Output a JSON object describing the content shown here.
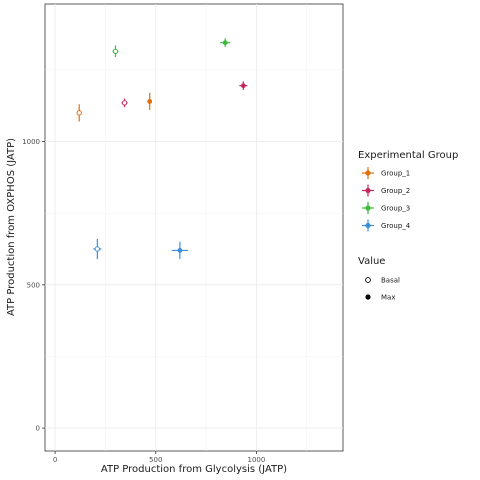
{
  "chart_data": {
    "type": "scatter",
    "xlabel": "ATP Production from Glycolysis (JATP)",
    "ylabel": "ATP Production from OXPHOS (JATP)",
    "xlim": [
      -50,
      1430
    ],
    "ylim": [
      -80,
      1480
    ],
    "x_ticks": [
      0,
      500,
      1000
    ],
    "y_ticks": [
      0,
      500,
      1000
    ],
    "grid": true,
    "legend_placement": "right",
    "color_legend": {
      "title": "Experimental Group",
      "entries": [
        {
          "label": "Group_1",
          "color": "#e0700f"
        },
        {
          "label": "Group_2",
          "color": "#c22a5e"
        },
        {
          "label": "Group_3",
          "color": "#3db83d"
        },
        {
          "label": "Group_4",
          "color": "#3b8fd6"
        }
      ]
    },
    "shape_legend": {
      "title": "Value",
      "entries": [
        {
          "label": "Basal",
          "shape": "open-circle"
        },
        {
          "label": "Max",
          "shape": "filled-circle"
        }
      ]
    },
    "series": [
      {
        "group": "Group_1",
        "value": "Basal",
        "x": 120,
        "y": 1100,
        "x_err": 10,
        "y_err": 30
      },
      {
        "group": "Group_1",
        "value": "Max",
        "x": 470,
        "y": 1140,
        "x_err": 10,
        "y_err": 30
      },
      {
        "group": "Group_2",
        "value": "Basal",
        "x": 345,
        "y": 1135,
        "x_err": 15,
        "y_err": 15
      },
      {
        "group": "Group_2",
        "value": "Max",
        "x": 935,
        "y": 1195,
        "x_err": 20,
        "y_err": 15
      },
      {
        "group": "Group_3",
        "value": "Basal",
        "x": 300,
        "y": 1315,
        "x_err": 15,
        "y_err": 20
      },
      {
        "group": "Group_3",
        "value": "Max",
        "x": 845,
        "y": 1345,
        "x_err": 25,
        "y_err": 15
      },
      {
        "group": "Group_4",
        "value": "Basal",
        "x": 210,
        "y": 625,
        "x_err": 20,
        "y_err": 35
      },
      {
        "group": "Group_4",
        "value": "Max",
        "x": 620,
        "y": 620,
        "x_err": 40,
        "y_err": 30
      }
    ]
  }
}
